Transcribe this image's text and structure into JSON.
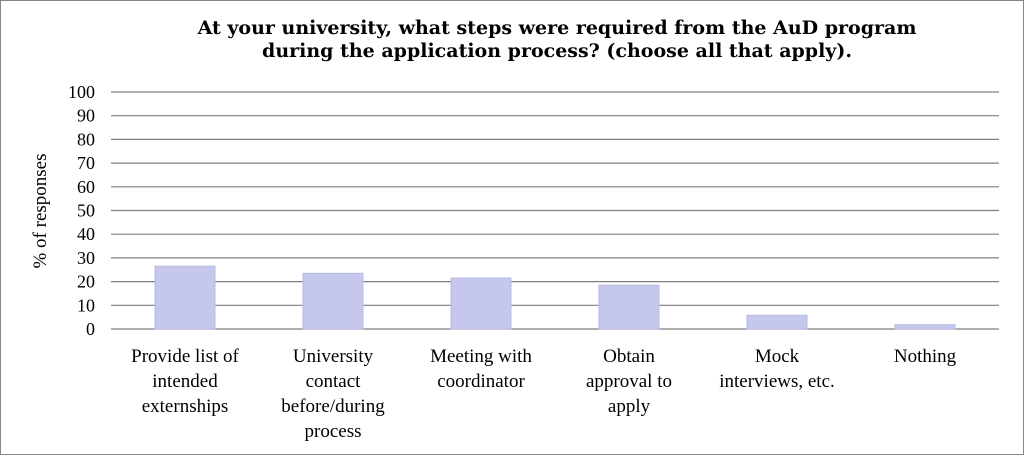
{
  "chart_data": {
    "type": "bar",
    "title_lines": [
      "At your university, what steps were required from the AuD program",
      "during the application process? (choose all that apply)."
    ],
    "xlabel": "",
    "ylabel": "% of responses",
    "ylim": [
      0,
      100
    ],
    "yticks": [
      0,
      10,
      20,
      30,
      40,
      50,
      60,
      70,
      80,
      90,
      100
    ],
    "grid": true,
    "legend": "none",
    "bar_color": "#c5c8ec",
    "categories": [
      [
        "Provide list of",
        "intended",
        "externships"
      ],
      [
        "University",
        "contact",
        "before/during",
        "process"
      ],
      [
        "Meeting with",
        "coordinator"
      ],
      [
        "Obtain",
        "approval to",
        "apply"
      ],
      [
        "Mock",
        "interviews, etc."
      ],
      [
        "Nothing"
      ]
    ],
    "values": [
      26.5,
      23.5,
      21.5,
      18.5,
      5.8,
      1.8
    ]
  }
}
